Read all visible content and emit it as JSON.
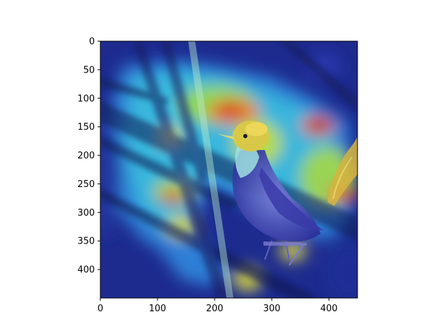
{
  "colors": {
    "background": "#ffffff",
    "axis": "#000000",
    "heatmap_low": "#1a2a8c",
    "heatmap_mid": "#3fbfd8",
    "heatmap_high": "#c81e1e"
  },
  "image": {
    "subject": "bird-on-branches-with-saliency-heatmap-overlay",
    "colormap": "jet"
  },
  "axes": {
    "x_ticks": [
      "0",
      "100",
      "200",
      "300",
      "400"
    ],
    "y_ticks": [
      "0",
      "50",
      "100",
      "150",
      "200",
      "250",
      "300",
      "350",
      "400"
    ],
    "x_range": [
      0,
      450
    ],
    "y_range": [
      0,
      450
    ]
  }
}
